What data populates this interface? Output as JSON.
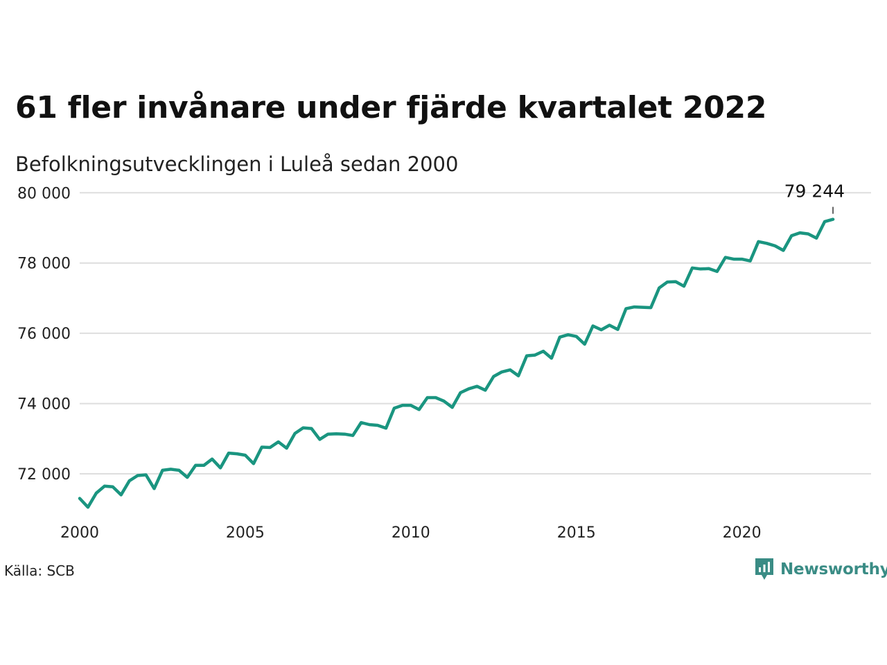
{
  "title": "61 fler invånare under fjärde kvartalet 2022",
  "subtitle": "Befolkningsutvecklingen i Luleå sedan 2000",
  "source": "Källa: SCB",
  "brand": {
    "name": "Newsworthy",
    "icon": "newsworthy-logo-icon",
    "color": "#3a8c85"
  },
  "chart_data": {
    "type": "line",
    "line_color": "#1a9580",
    "grid": true,
    "xlim": [
      2000,
      2023.9
    ],
    "ylim": [
      70600,
      80400
    ],
    "x_ticks": [
      2000,
      2005,
      2010,
      2015,
      2020
    ],
    "x_tick_labels": [
      "2000",
      "2005",
      "2010",
      "2015",
      "2020"
    ],
    "y_ticks": [
      72000,
      74000,
      76000,
      78000,
      80000
    ],
    "y_tick_labels": [
      "72 000",
      "74 000",
      "76 000",
      "78 000",
      "80 000"
    ],
    "last_value_label": "79 244",
    "series": [
      {
        "x": [
          2000.0,
          2000.25,
          2000.5,
          2000.75,
          2001.0,
          2001.25,
          2001.5,
          2001.75,
          2002.0,
          2002.25,
          2002.5,
          2002.75,
          2003.0,
          2003.25,
          2003.5,
          2003.75,
          2004.0,
          2004.25,
          2004.5,
          2004.75,
          2005.0,
          2005.25,
          2005.5,
          2005.75,
          2006.0,
          2006.25,
          2006.5,
          2006.75,
          2007.0,
          2007.25,
          2007.5,
          2007.75,
          2008.0,
          2008.25,
          2008.5,
          2008.75,
          2009.0,
          2009.25,
          2009.5,
          2009.75,
          2010.0,
          2010.25,
          2010.5,
          2010.75,
          2011.0,
          2011.25,
          2011.5,
          2011.75,
          2012.0,
          2012.25,
          2012.5,
          2012.75,
          2013.0,
          2013.25,
          2013.5,
          2013.75,
          2014.0,
          2014.25,
          2014.5,
          2014.75,
          2015.0,
          2015.25,
          2015.5,
          2015.75,
          2016.0,
          2016.25,
          2016.5,
          2016.75,
          2017.0,
          2017.25,
          2017.5,
          2017.75,
          2018.0,
          2018.25,
          2018.5,
          2018.75,
          2019.0,
          2019.25,
          2019.5,
          2019.75,
          2020.0,
          2020.25,
          2020.5,
          2020.75,
          2021.0,
          2021.25,
          2021.5,
          2021.75,
          2022.0,
          2022.25,
          2022.5,
          2022.75
        ],
        "y": [
          71300,
          71050,
          71450,
          71650,
          71630,
          71400,
          71800,
          71950,
          71970,
          71580,
          72100,
          72130,
          72100,
          71900,
          72240,
          72240,
          72420,
          72170,
          72590,
          72570,
          72530,
          72290,
          72760,
          72750,
          72910,
          72730,
          73150,
          73310,
          73290,
          72980,
          73130,
          73140,
          73130,
          73090,
          73460,
          73400,
          73380,
          73300,
          73870,
          73950,
          73950,
          73830,
          74170,
          74170,
          74070,
          73890,
          74310,
          74420,
          74490,
          74380,
          74770,
          74900,
          74960,
          74790,
          75360,
          75380,
          75490,
          75290,
          75890,
          75960,
          75910,
          75690,
          76210,
          76100,
          76230,
          76110,
          76700,
          76750,
          76740,
          76730,
          77290,
          77460,
          77470,
          77340,
          77860,
          77830,
          77840,
          77760,
          78160,
          78110,
          78110,
          78060,
          78610,
          78560,
          78490,
          78360,
          78780,
          78860,
          78830,
          78710,
          79180,
          79244
        ]
      }
    ]
  }
}
